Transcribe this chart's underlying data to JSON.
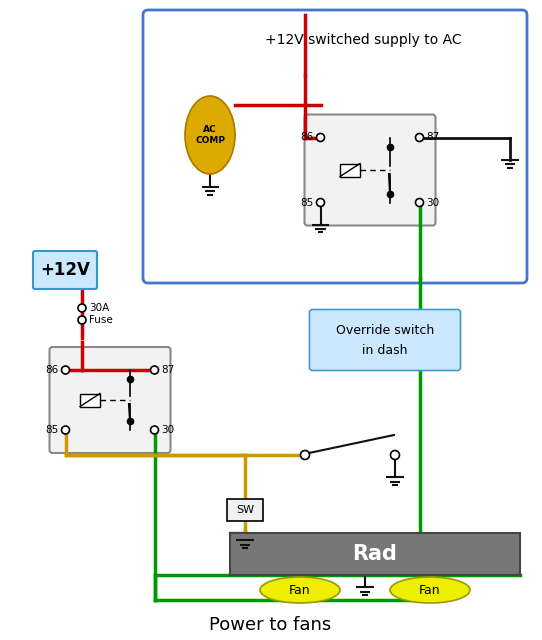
{
  "fig_w": 5.42,
  "fig_h": 6.4,
  "dpi": 100,
  "bg": "#ffffff",
  "title": "Power to fans",
  "top_label": "+12V switched supply to AC",
  "override_line1": "Override switch",
  "override_line2": "in dash",
  "wire_red": "#cc0000",
  "wire_green": "#009900",
  "wire_yellow": "#cc9900",
  "wire_black": "#111111",
  "relay_edge": "#888888",
  "relay_face": "#f2f2f2",
  "ac_box_edge": "#4477cc",
  "ac_comp_fill": "#ddaa00",
  "ac_comp_edge": "#aa7700",
  "plus12_edge": "#3399cc",
  "plus12_face": "#cce8ff",
  "override_edge": "#4499cc",
  "override_face": "#cce8ff",
  "rad_face": "#777777",
  "fan_fill": "#eeee00",
  "fan_edge": "#999900"
}
